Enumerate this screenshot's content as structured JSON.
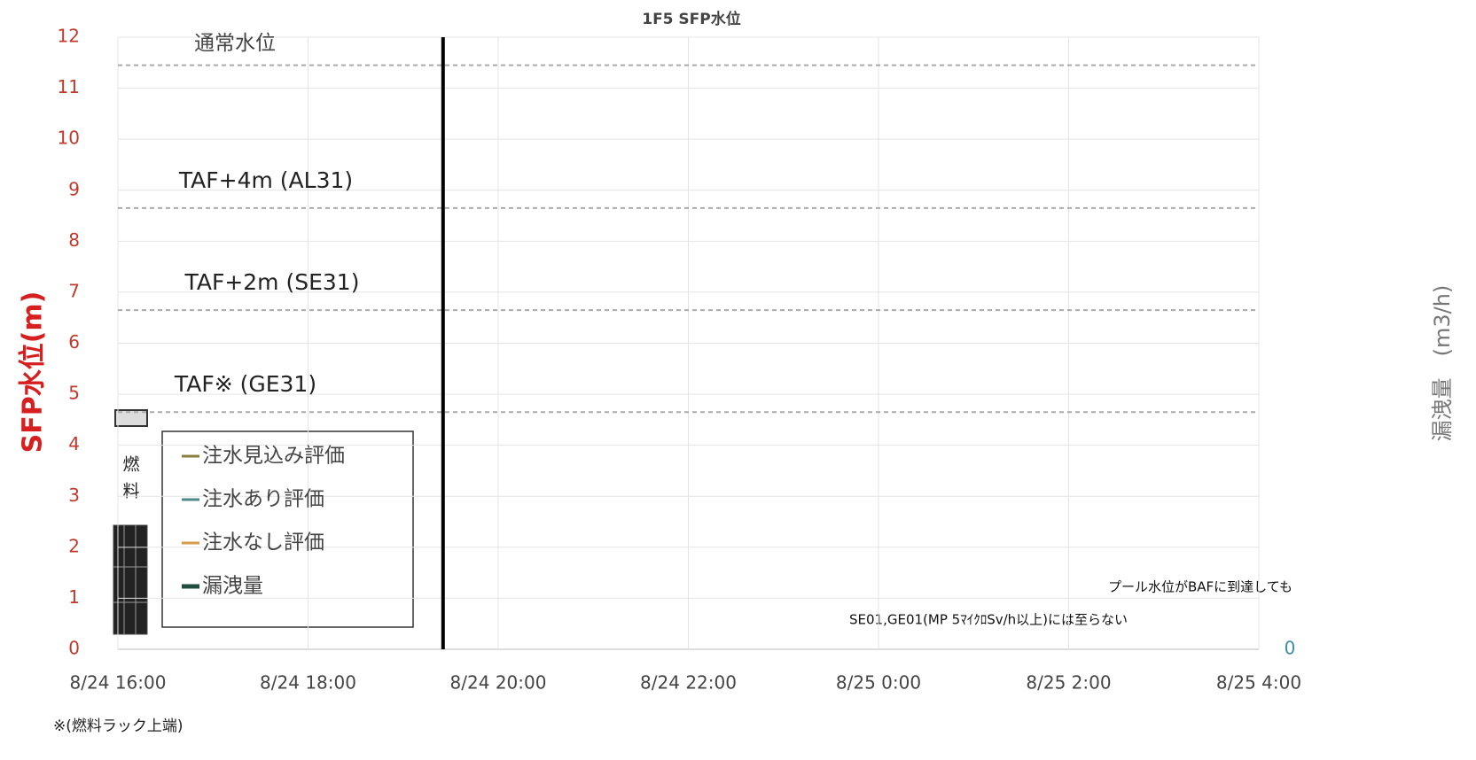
{
  "chart_data": {
    "type": "line",
    "title": "1F5 SFP水位",
    "y_label": "SFP水位(m)",
    "y2_label": "漏洩量　(m3/h)",
    "ylim": [
      0,
      12
    ],
    "yticks": [
      0,
      1,
      2,
      3,
      4,
      5,
      6,
      7,
      8,
      9,
      10,
      11,
      12
    ],
    "xlim": [
      16,
      28
    ],
    "xticks": [
      {
        "value": 16,
        "label": "8/24 16:00"
      },
      {
        "value": 18,
        "label": "8/24 18:00"
      },
      {
        "value": 20,
        "label": "8/24 20:00"
      },
      {
        "value": 22,
        "label": "8/24 22:00"
      },
      {
        "value": 24,
        "label": "8/25 0:00"
      },
      {
        "value": 26,
        "label": "8/25 2:00"
      },
      {
        "value": 28,
        "label": "8/25 4:00"
      }
    ],
    "y2ticks": [
      0
    ],
    "grid": true,
    "reference_lines": [
      {
        "name": "通常水位",
        "value": 11.45
      },
      {
        "name": "TAF+4m (AL31)",
        "value": 8.65
      },
      {
        "name": "TAF+2m (SE31)",
        "value": 6.65
      },
      {
        "name": "TAF※ (GE31)",
        "value": 4.65
      }
    ],
    "current_time": 19.42,
    "legend": [
      {
        "name": "注水見込み評価",
        "color": "#8b7d3a"
      },
      {
        "name": "注水あり評価",
        "color": "#4f8a8b"
      },
      {
        "name": "注水なし評価",
        "color": "#d89a4a"
      },
      {
        "name": "漏洩量",
        "color": "#1f4e3d"
      }
    ],
    "fuel_label": [
      "燃",
      "料"
    ],
    "footnote": "※(燃料ラック上端)",
    "annotations": [
      "プール水位がBAFに到達しても",
      "SE01,GE01(MP 5ﾏｲｸﾛSv/h以上)には至らない"
    ]
  }
}
